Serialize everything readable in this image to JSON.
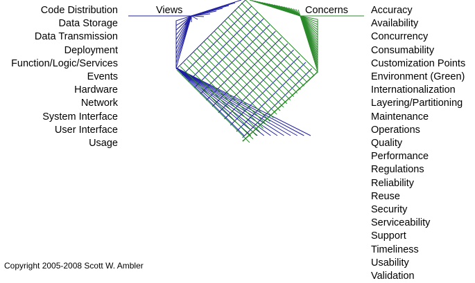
{
  "views_header": "Views",
  "concerns_header": "Concerns",
  "views": [
    "Code Distribution",
    "Data Storage",
    "Data Transmission",
    "Deployment",
    "Function/Logic/Services",
    "Events",
    "Hardware",
    "Network",
    "System Interface",
    "User Interface",
    "Usage"
  ],
  "concerns": [
    "Accuracy",
    "Availability",
    "Concurrency",
    "Consumability",
    "Customization Points",
    "Environment (Green)",
    "Internationalization",
    "Layering/Partitioning",
    "Maintenance",
    "Operations",
    "Quality",
    "Performance",
    "Regulations",
    "Reliability",
    "Reuse",
    "Security",
    "Serviceability",
    "Support",
    "Timeliness",
    "Usability",
    "Validation"
  ],
  "copyright": "Copyright 2005-2008 Scott W. Ambler",
  "colors": {
    "views": "#1f1fa0",
    "concerns": "#2a8a2a",
    "text": "#000000"
  }
}
